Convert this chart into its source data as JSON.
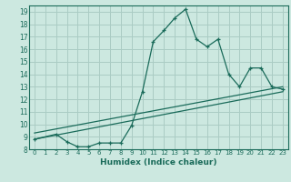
{
  "xlabel": "Humidex (Indice chaleur)",
  "bg_color": "#cce8e0",
  "grid_color": "#aaccc4",
  "line_color": "#1a6b5a",
  "xlim": [
    -0.5,
    23.5
  ],
  "ylim": [
    8,
    19.5
  ],
  "xticks": [
    0,
    1,
    2,
    3,
    4,
    5,
    6,
    7,
    8,
    9,
    10,
    11,
    12,
    13,
    14,
    15,
    16,
    17,
    18,
    19,
    20,
    21,
    22,
    23
  ],
  "yticks": [
    8,
    9,
    10,
    11,
    12,
    13,
    14,
    15,
    16,
    17,
    18,
    19
  ],
  "series_main": {
    "x": [
      0,
      2,
      3,
      4,
      5,
      6,
      7,
      8,
      9,
      10,
      11,
      12,
      13,
      14,
      15,
      16,
      17,
      18,
      19,
      20,
      21,
      22,
      23
    ],
    "y": [
      8.8,
      9.2,
      8.6,
      8.2,
      8.2,
      8.5,
      8.5,
      8.5,
      9.9,
      12.6,
      16.6,
      17.5,
      18.5,
      19.2,
      16.8,
      16.2,
      16.8,
      14.0,
      13.0,
      14.5,
      14.5,
      13.0,
      12.8
    ]
  },
  "series_line1": {
    "x": [
      0,
      23
    ],
    "y": [
      9.3,
      13.0
    ]
  },
  "series_line2": {
    "x": [
      0,
      23
    ],
    "y": [
      8.8,
      12.6
    ]
  }
}
